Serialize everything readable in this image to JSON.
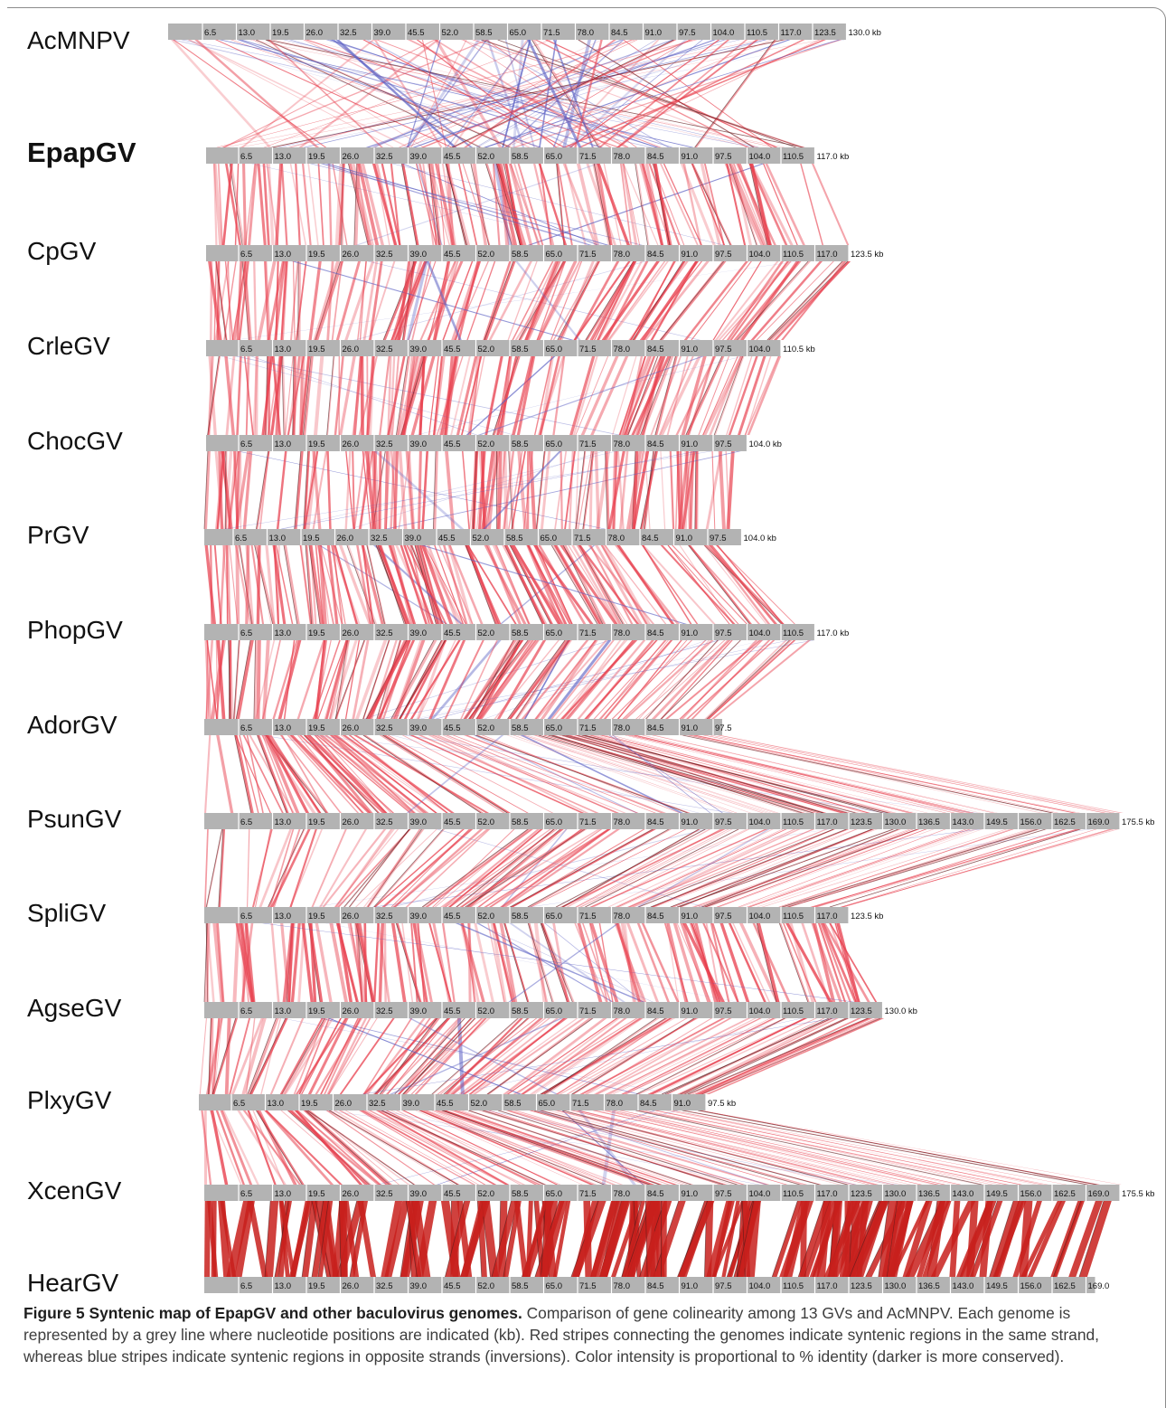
{
  "figure": {
    "title": "Figure 5 Syntenic map of EpapGV and other baculovirus genomes.",
    "caption": "Comparison of gene colinearity among 13 GVs and AcMNPV. Each genome is represented by a grey line where nucleotide positions are indicated (kb). Red stripes connecting the genomes indicate syntenic regions in the same strand, whereas blue stripes indicate syntenic regions in opposite strands (inversions). Color intensity is proportional to % identity (darker is more conserved)."
  },
  "colors": {
    "genome_bar": "#b3b3b3",
    "same_strand": "#e8414f",
    "opposite_strand": "#5e63c4",
    "dense_same_strand": "#c8201c"
  },
  "genomes": [
    {
      "name": "AcMNPV",
      "bold": false,
      "ticks": [
        "6.5",
        "13.0",
        "19.5",
        "26.0",
        "32.5",
        "39.0",
        "45.5",
        "52.0",
        "58.5",
        "65.0",
        "71.5",
        "78.0",
        "84.5",
        "91.0",
        "97.5",
        "104.0",
        "110.5",
        "117.0",
        "123.5",
        "130.0 kb"
      ]
    },
    {
      "name": "EpapGV",
      "bold": true,
      "ticks": [
        "6.5",
        "13.0",
        "19.5",
        "26.0",
        "32.5",
        "39.0",
        "45.5",
        "52.0",
        "58.5",
        "65.0",
        "71.5",
        "78.0",
        "84.5",
        "91.0",
        "97.5",
        "104.0",
        "110.5",
        "117.0 kb"
      ]
    },
    {
      "name": "CpGV",
      "bold": false,
      "ticks": [
        "6.5",
        "13.0",
        "19.5",
        "26.0",
        "32.5",
        "39.0",
        "45.5",
        "52.0",
        "58.5",
        "65.0",
        "71.5",
        "78.0",
        "84.5",
        "91.0",
        "97.5",
        "104.0",
        "110.5",
        "117.0",
        "123.5 kb"
      ]
    },
    {
      "name": "CrleGV",
      "bold": false,
      "ticks": [
        "6.5",
        "13.0",
        "19.5",
        "26.0",
        "32.5",
        "39.0",
        "45.5",
        "52.0",
        "58.5",
        "65.0",
        "71.5",
        "78.0",
        "84.5",
        "91.0",
        "97.5",
        "104.0",
        "110.5 kb"
      ]
    },
    {
      "name": "ChocGV",
      "bold": false,
      "ticks": [
        "6.5",
        "13.0",
        "19.5",
        "26.0",
        "32.5",
        "39.0",
        "45.5",
        "52.0",
        "58.5",
        "65.0",
        "71.5",
        "78.0",
        "84.5",
        "91.0",
        "97.5",
        "104.0 kb"
      ]
    },
    {
      "name": "PrGV",
      "bold": false,
      "ticks": [
        "6.5",
        "13.0",
        "19.5",
        "26.0",
        "32.5",
        "39.0",
        "45.5",
        "52.0",
        "58.5",
        "65.0",
        "71.5",
        "78.0",
        "84.5",
        "91.0",
        "97.5",
        "104.0 kb"
      ]
    },
    {
      "name": "PhopGV",
      "bold": false,
      "ticks": [
        "6.5",
        "13.0",
        "19.5",
        "26.0",
        "32.5",
        "39.0",
        "45.5",
        "52.0",
        "58.5",
        "65.0",
        "71.5",
        "78.0",
        "84.5",
        "91.0",
        "97.5",
        "104.0",
        "110.5",
        "117.0 kb"
      ]
    },
    {
      "name": "AdorGV",
      "bold": false,
      "ticks": [
        "6.5",
        "13.0",
        "19.5",
        "26.0",
        "32.5",
        "39.0",
        "45.5",
        "52.0",
        "58.5",
        "65.0",
        "71.5",
        "78.0",
        "84.5",
        "91.0",
        "97.5"
      ]
    },
    {
      "name": "PsunGV",
      "bold": false,
      "ticks": [
        "6.5",
        "13.0",
        "19.5",
        "26.0",
        "32.5",
        "39.0",
        "45.5",
        "52.0",
        "58.5",
        "65.0",
        "71.5",
        "78.0",
        "84.5",
        "91.0",
        "97.5",
        "104.0",
        "110.5",
        "117.0",
        "123.5",
        "130.0",
        "136.5",
        "143.0",
        "149.5",
        "156.0",
        "162.5",
        "169.0",
        "175.5 kb"
      ]
    },
    {
      "name": "SpliGV",
      "bold": false,
      "ticks": [
        "6.5",
        "13.0",
        "19.5",
        "26.0",
        "32.5",
        "39.0",
        "45.5",
        "52.0",
        "58.5",
        "65.0",
        "71.5",
        "78.0",
        "84.5",
        "91.0",
        "97.5",
        "104.0",
        "110.5",
        "117.0",
        "123.5 kb"
      ]
    },
    {
      "name": "AgseGV",
      "bold": false,
      "ticks": [
        "6.5",
        "13.0",
        "19.5",
        "26.0",
        "32.5",
        "39.0",
        "45.5",
        "52.0",
        "58.5",
        "65.0",
        "71.5",
        "78.0",
        "84.5",
        "91.0",
        "97.5",
        "104.0",
        "110.5",
        "117.0",
        "123.5",
        "130.0 kb"
      ]
    },
    {
      "name": "PlxyGV",
      "bold": false,
      "ticks": [
        "6.5",
        "13.0",
        "19.5",
        "26.0",
        "32.5",
        "39.0",
        "45.5",
        "52.0",
        "58.5",
        "65.0",
        "71.5",
        "78.0",
        "84.5",
        "91.0",
        "97.5 kb"
      ]
    },
    {
      "name": "XcenGV",
      "bold": false,
      "ticks": [
        "6.5",
        "13.0",
        "19.5",
        "26.0",
        "32.5",
        "39.0",
        "45.5",
        "52.0",
        "58.5",
        "65.0",
        "71.5",
        "78.0",
        "84.5",
        "91.0",
        "97.5",
        "104.0",
        "110.5",
        "117.0",
        "123.5",
        "130.0",
        "136.5",
        "143.0",
        "149.5",
        "156.0",
        "162.5",
        "169.0",
        "175.5 kb"
      ]
    },
    {
      "name": "HearGV",
      "bold": false,
      "ticks": [
        "6.5",
        "13.0",
        "19.5",
        "26.0",
        "32.5",
        "39.0",
        "45.5",
        "52.0",
        "58.5",
        "65.0",
        "71.5",
        "78.0",
        "84.5",
        "91.0",
        "97.5",
        "104.0",
        "110.5",
        "117.0",
        "123.5",
        "130.0",
        "136.5",
        "143.0",
        "149.5",
        "156.0",
        "162.5",
        "169.0"
      ]
    }
  ]
}
